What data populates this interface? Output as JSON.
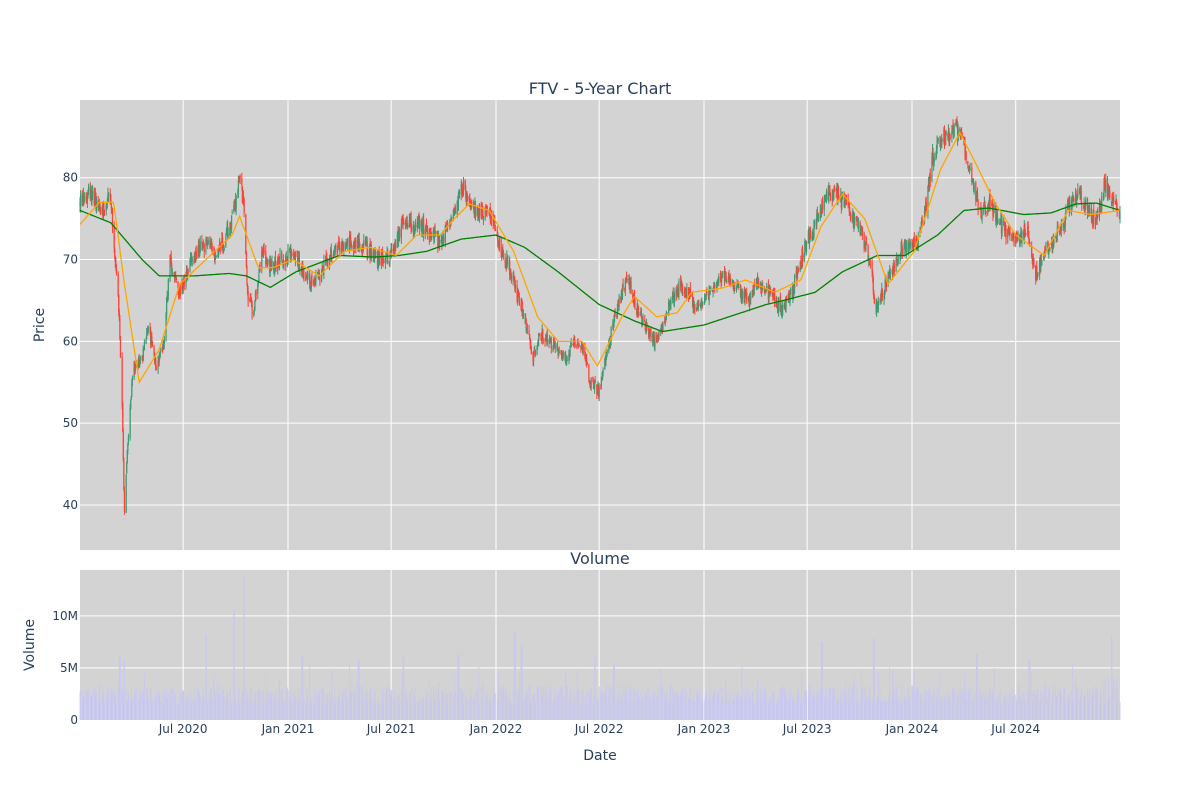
{
  "chart_data": [
    {
      "type": "candlestick",
      "title": "FTV - 5-Year Chart",
      "ylabel": "Price",
      "xlabel": "",
      "ylim": [
        34.5,
        89.5
      ],
      "y_ticks": [
        40,
        50,
        60,
        70,
        80
      ],
      "grid": true,
      "legend": "none",
      "colors": {
        "up": "#3d9970",
        "down": "#ff4136",
        "ma_short": "#ffa500",
        "ma_long": "#008000",
        "plot_bg": "#d3d3d3",
        "grid": "#ffffff"
      },
      "series": [
        {
          "kind": "ohlc",
          "notes": "daily candlesticks; approximate trend of daily closes listed as monthly anchor points below"
        },
        {
          "kind": "ma_short",
          "color": "orange"
        },
        {
          "kind": "ma_long",
          "color": "green"
        }
      ],
      "price_anchors": [
        [
          "2020-01-02",
          77
        ],
        [
          "2020-01-20",
          78.5
        ],
        [
          "2020-02-10",
          76
        ],
        [
          "2020-02-24",
          77.5
        ],
        [
          "2020-03-02",
          72
        ],
        [
          "2020-03-10",
          64
        ],
        [
          "2020-03-16",
          52
        ],
        [
          "2020-03-20",
          39
        ],
        [
          "2020-03-26",
          48
        ],
        [
          "2020-04-05",
          57
        ],
        [
          "2020-04-20",
          58
        ],
        [
          "2020-05-01",
          62
        ],
        [
          "2020-05-15",
          56
        ],
        [
          "2020-05-28",
          60
        ],
        [
          "2020-06-08",
          70
        ],
        [
          "2020-06-25",
          66
        ],
        [
          "2020-07-10",
          69
        ],
        [
          "2020-07-25",
          71
        ],
        [
          "2020-08-10",
          72
        ],
        [
          "2020-08-25",
          71
        ],
        [
          "2020-09-10",
          72
        ],
        [
          "2020-09-25",
          75
        ],
        [
          "2020-10-08",
          80
        ],
        [
          "2020-10-15",
          77
        ],
        [
          "2020-10-22",
          66
        ],
        [
          "2020-11-01",
          63
        ],
        [
          "2020-11-15",
          71
        ],
        [
          "2020-12-01",
          69
        ],
        [
          "2020-12-20",
          70
        ],
        [
          "2021-01-10",
          71
        ],
        [
          "2021-01-25",
          69
        ],
        [
          "2021-02-08",
          67
        ],
        [
          "2021-02-25",
          68
        ],
        [
          "2021-03-10",
          70
        ],
        [
          "2021-03-25",
          71
        ],
        [
          "2021-04-10",
          72
        ],
        [
          "2021-04-25",
          72
        ],
        [
          "2021-05-10",
          72
        ],
        [
          "2021-05-25",
          71
        ],
        [
          "2021-06-10",
          70
        ],
        [
          "2021-06-25",
          70
        ],
        [
          "2021-07-10",
          72
        ],
        [
          "2021-07-25",
          75
        ],
        [
          "2021-08-10",
          74
        ],
        [
          "2021-08-25",
          74
        ],
        [
          "2021-09-10",
          73
        ],
        [
          "2021-09-25",
          72
        ],
        [
          "2021-10-10",
          74
        ],
        [
          "2021-10-25",
          77
        ],
        [
          "2021-11-05",
          79
        ],
        [
          "2021-11-20",
          76
        ],
        [
          "2021-12-10",
          76
        ],
        [
          "2021-12-28",
          75
        ],
        [
          "2022-01-10",
          71
        ],
        [
          "2022-01-25",
          69
        ],
        [
          "2022-02-05",
          66
        ],
        [
          "2022-02-20",
          63
        ],
        [
          "2022-03-08",
          58
        ],
        [
          "2022-03-20",
          61
        ],
        [
          "2022-04-05",
          60
        ],
        [
          "2022-04-20",
          59
        ],
        [
          "2022-05-05",
          58
        ],
        [
          "2022-05-20",
          60
        ],
        [
          "2022-06-05",
          59
        ],
        [
          "2022-06-15",
          55
        ],
        [
          "2022-06-30",
          54
        ],
        [
          "2022-07-10",
          57
        ],
        [
          "2022-07-25",
          62
        ],
        [
          "2022-08-10",
          66
        ],
        [
          "2022-08-20",
          68
        ],
        [
          "2022-09-05",
          64
        ],
        [
          "2022-09-20",
          62
        ],
        [
          "2022-10-05",
          60
        ],
        [
          "2022-10-20",
          62
        ],
        [
          "2022-11-05",
          65
        ],
        [
          "2022-11-20",
          67
        ],
        [
          "2022-12-05",
          66
        ],
        [
          "2022-12-20",
          64
        ],
        [
          "2023-01-05",
          65
        ],
        [
          "2023-01-20",
          67
        ],
        [
          "2023-02-05",
          68
        ],
        [
          "2023-02-20",
          67
        ],
        [
          "2023-03-08",
          66
        ],
        [
          "2023-03-20",
          65
        ],
        [
          "2023-04-05",
          67
        ],
        [
          "2023-04-20",
          66
        ],
        [
          "2023-05-05",
          65
        ],
        [
          "2023-05-20",
          64
        ],
        [
          "2023-06-05",
          66
        ],
        [
          "2023-06-20",
          70
        ],
        [
          "2023-07-05",
          73
        ],
        [
          "2023-07-20",
          75
        ],
        [
          "2023-08-05",
          78
        ],
        [
          "2023-08-20",
          78
        ],
        [
          "2023-09-05",
          77
        ],
        [
          "2023-09-20",
          75
        ],
        [
          "2023-10-05",
          73
        ],
        [
          "2023-10-20",
          70
        ],
        [
          "2023-10-28",
          64
        ],
        [
          "2023-11-10",
          66
        ],
        [
          "2023-11-25",
          68
        ],
        [
          "2023-12-10",
          71
        ],
        [
          "2023-12-28",
          72
        ],
        [
          "2024-01-10",
          72
        ],
        [
          "2024-01-25",
          76
        ],
        [
          "2024-02-05",
          82
        ],
        [
          "2024-02-20",
          85
        ],
        [
          "2024-03-05",
          85
        ],
        [
          "2024-03-20",
          86
        ],
        [
          "2024-04-01",
          84
        ],
        [
          "2024-04-15",
          80
        ],
        [
          "2024-04-30",
          76
        ],
        [
          "2024-05-15",
          77
        ],
        [
          "2024-05-30",
          75
        ],
        [
          "2024-06-15",
          73
        ],
        [
          "2024-06-30",
          72
        ],
        [
          "2024-07-20",
          74
        ],
        [
          "2024-08-05",
          68
        ],
        [
          "2024-08-20",
          71
        ],
        [
          "2024-09-05",
          72
        ],
        [
          "2024-09-20",
          74
        ],
        [
          "2024-10-05",
          77
        ],
        [
          "2024-10-20",
          78
        ],
        [
          "2024-11-05",
          76
        ],
        [
          "2024-11-20",
          75
        ],
        [
          "2024-12-05",
          79
        ],
        [
          "2024-12-15",
          78
        ],
        [
          "2024-12-31",
          75
        ]
      ],
      "ma_long_anchors": [
        [
          "2020-01-02",
          76
        ],
        [
          "2020-02-25",
          74.5
        ],
        [
          "2020-04-20",
          70
        ],
        [
          "2020-05-20",
          68
        ],
        [
          "2020-07-20",
          68
        ],
        [
          "2020-09-20",
          68.3
        ],
        [
          "2020-10-20",
          68
        ],
        [
          "2020-12-01",
          66.6
        ],
        [
          "2021-01-15",
          68.5
        ],
        [
          "2021-04-01",
          70.5
        ],
        [
          "2021-06-01",
          70.3
        ],
        [
          "2021-07-15",
          70.5
        ],
        [
          "2021-09-01",
          71
        ],
        [
          "2021-11-01",
          72.5
        ],
        [
          "2022-01-01",
          73
        ],
        [
          "2022-02-20",
          71.5
        ],
        [
          "2022-04-20",
          68.5
        ],
        [
          "2022-07-01",
          64.5
        ],
        [
          "2022-09-01",
          62.5
        ],
        [
          "2022-10-20",
          61.2
        ],
        [
          "2023-01-01",
          62
        ],
        [
          "2023-04-20",
          64.5
        ],
        [
          "2023-06-01",
          65.2
        ],
        [
          "2023-07-15",
          66
        ],
        [
          "2023-09-01",
          68.5
        ],
        [
          "2023-11-01",
          70.5
        ],
        [
          "2023-12-20",
          70.5
        ],
        [
          "2024-02-15",
          73
        ],
        [
          "2024-04-01",
          76
        ],
        [
          "2024-05-15",
          76.3
        ],
        [
          "2024-07-15",
          75.5
        ],
        [
          "2024-09-01",
          75.7
        ],
        [
          "2024-10-15",
          76.8
        ],
        [
          "2024-11-20",
          76.9
        ],
        [
          "2024-12-31",
          76
        ]
      ],
      "ma_short_anchors": [
        [
          "2020-01-02",
          74.3
        ],
        [
          "2020-02-05",
          77
        ],
        [
          "2020-03-01",
          77
        ],
        [
          "2020-03-20",
          67
        ],
        [
          "2020-04-15",
          55
        ],
        [
          "2020-05-20",
          59
        ],
        [
          "2020-06-25",
          67
        ],
        [
          "2020-08-10",
          70
        ],
        [
          "2020-09-25",
          73
        ],
        [
          "2020-10-08",
          75.3
        ],
        [
          "2020-11-10",
          69
        ],
        [
          "2020-12-05",
          69
        ],
        [
          "2021-01-10",
          70
        ],
        [
          "2021-02-25",
          68
        ],
        [
          "2021-04-10",
          71
        ],
        [
          "2021-05-25",
          71.5
        ],
        [
          "2021-07-10",
          70.5
        ],
        [
          "2021-08-15",
          73
        ],
        [
          "2021-09-25",
          73
        ],
        [
          "2021-10-20",
          75
        ],
        [
          "2021-11-15",
          76.8
        ],
        [
          "2021-12-20",
          76
        ],
        [
          "2022-02-01",
          71
        ],
        [
          "2022-03-15",
          63
        ],
        [
          "2022-04-20",
          60
        ],
        [
          "2022-06-01",
          60
        ],
        [
          "2022-06-28",
          57
        ],
        [
          "2022-08-10",
          63
        ],
        [
          "2022-09-01",
          65.5
        ],
        [
          "2022-10-10",
          63
        ],
        [
          "2022-11-15",
          63.5
        ],
        [
          "2022-12-10",
          66
        ],
        [
          "2023-02-01",
          66.5
        ],
        [
          "2023-03-15",
          67.5
        ],
        [
          "2023-05-05",
          66
        ],
        [
          "2023-06-20",
          67.5
        ],
        [
          "2023-07-25",
          74
        ],
        [
          "2023-09-01",
          78
        ],
        [
          "2023-10-10",
          75
        ],
        [
          "2023-11-20",
          67
        ],
        [
          "2024-01-05",
          71
        ],
        [
          "2024-02-20",
          81
        ],
        [
          "2024-03-25",
          85.5
        ],
        [
          "2024-04-20",
          82
        ],
        [
          "2024-05-25",
          77
        ],
        [
          "2024-07-01",
          73
        ],
        [
          "2024-08-20",
          70.5
        ],
        [
          "2024-10-01",
          76
        ],
        [
          "2024-11-10",
          75.5
        ],
        [
          "2024-12-31",
          76
        ]
      ]
    },
    {
      "type": "bar",
      "title": "Volume",
      "ylabel": "Volume",
      "xlabel": "Date",
      "ylim": [
        0,
        14400000
      ],
      "y_ticks": [
        {
          "value": 0,
          "label": "0"
        },
        {
          "value": 5000000,
          "label": "5M"
        },
        {
          "value": 10000000,
          "label": "10M"
        }
      ],
      "x_ticks": [
        {
          "date": "2020-07-01",
          "label": "Jul 2020"
        },
        {
          "date": "2021-01-01",
          "label": "Jan 2021"
        },
        {
          "date": "2021-07-01",
          "label": "Jul 2021"
        },
        {
          "date": "2022-01-01",
          "label": "Jan 2022"
        },
        {
          "date": "2022-07-01",
          "label": "Jul 2022"
        },
        {
          "date": "2023-01-01",
          "label": "Jan 2023"
        },
        {
          "date": "2023-07-01",
          "label": "Jul 2023"
        },
        {
          "date": "2024-01-01",
          "label": "Jan 2024"
        },
        {
          "date": "2024-07-01",
          "label": "Jul 2024"
        }
      ],
      "x_range": [
        "2020-01-02",
        "2024-12-31"
      ],
      "grid": true,
      "colors": {
        "bar": "#c8c8ee",
        "plot_bg": "#d3d3d3",
        "grid": "#ffffff"
      },
      "volume_spikes": [
        [
          "2020-03-12",
          6000000
        ],
        [
          "2020-03-20",
          5800000
        ],
        [
          "2020-08-10",
          8200000
        ],
        [
          "2020-09-28",
          10500000
        ],
        [
          "2020-10-16",
          13800000
        ],
        [
          "2021-01-26",
          6100000
        ],
        [
          "2021-05-05",
          5800000
        ],
        [
          "2021-07-23",
          6000000
        ],
        [
          "2021-10-27",
          6300000
        ],
        [
          "2022-02-03",
          8400000
        ],
        [
          "2022-02-15",
          7300000
        ],
        [
          "2022-06-24",
          6000000
        ],
        [
          "2022-07-27",
          5300000
        ],
        [
          "2023-07-27",
          7500000
        ],
        [
          "2023-10-26",
          7800000
        ],
        [
          "2024-04-24",
          6300000
        ],
        [
          "2024-07-25",
          5800000
        ],
        [
          "2024-12-16",
          8100000
        ]
      ]
    }
  ]
}
